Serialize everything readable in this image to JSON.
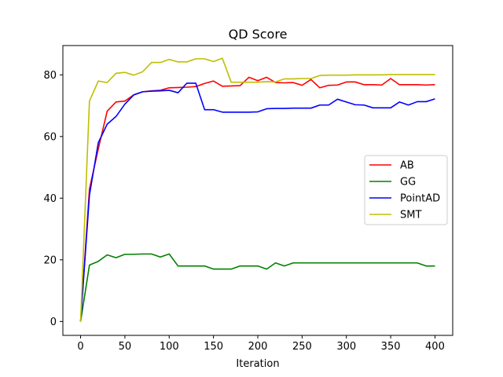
{
  "chart_data": {
    "type": "line",
    "title": "QD Score",
    "xlabel": "Iteration",
    "ylabel": "",
    "xlim": [
      -20,
      420
    ],
    "ylim": [
      -4.5,
      89.5
    ],
    "xticks": [
      0,
      50,
      100,
      150,
      200,
      250,
      300,
      350,
      400
    ],
    "yticks": [
      0,
      20,
      40,
      60,
      80
    ],
    "grid": false,
    "legend_position": "center-right",
    "x": [
      0,
      10,
      20,
      30,
      40,
      50,
      60,
      70,
      80,
      90,
      100,
      110,
      120,
      130,
      140,
      150,
      160,
      170,
      180,
      190,
      200,
      210,
      220,
      230,
      240,
      250,
      260,
      270,
      280,
      290,
      300,
      310,
      320,
      330,
      340,
      350,
      360,
      370,
      380,
      390,
      400
    ],
    "series": [
      {
        "name": "AB",
        "color": "#ff0000",
        "values": [
          0,
          43,
          56,
          68.2,
          71.2,
          71.5,
          73.5,
          74.5,
          74.8,
          75,
          75.8,
          75.9,
          76,
          76.2,
          77.2,
          78,
          76.3,
          76.4,
          76.5,
          79.2,
          78.1,
          79.2,
          77.5,
          77.4,
          77.5,
          76.6,
          78.5,
          75.8,
          76.6,
          76.7,
          77.7,
          77.7,
          76.8,
          76.8,
          76.7,
          78.8,
          76.8,
          76.8,
          76.8,
          76.7,
          76.8
        ]
      },
      {
        "name": "GG",
        "color": "#008000",
        "values": [
          0,
          18.3,
          19.5,
          21.6,
          20.7,
          21.8,
          21.8,
          21.9,
          21.9,
          20.9,
          21.9,
          18,
          18,
          18,
          18,
          17,
          17,
          17,
          18,
          18,
          18,
          17,
          19,
          18,
          19,
          19,
          19,
          19,
          19,
          19,
          19,
          19,
          19,
          19,
          19,
          19,
          19,
          19,
          19,
          18,
          18
        ]
      },
      {
        "name": "PointAD",
        "color": "#0000ff",
        "values": [
          0,
          41,
          58,
          64,
          66.5,
          70.5,
          73.5,
          74.5,
          74.7,
          74.8,
          75,
          74.2,
          77.3,
          77.3,
          68.7,
          68.7,
          67.9,
          67.9,
          67.9,
          67.9,
          68,
          69,
          69.1,
          69.1,
          69.2,
          69.2,
          69.2,
          70.2,
          70.2,
          72.1,
          71.2,
          70.3,
          70.2,
          69.3,
          69.3,
          69.3,
          71.2,
          70.2,
          71.3,
          71.3,
          72.2
        ]
      },
      {
        "name": "SMT",
        "color": "#bfbf00",
        "values": [
          0,
          71.5,
          78,
          77.5,
          80.5,
          80.8,
          79.9,
          81,
          84,
          84,
          85,
          84.2,
          84.2,
          85.2,
          85.2,
          84.3,
          85.4,
          77.6,
          77.6,
          77.6,
          77.6,
          77.8,
          77.7,
          78.7,
          78.7,
          78.8,
          78.8,
          79.8,
          79.9,
          79.9,
          79.9,
          80,
          80,
          80,
          80,
          80.1,
          80.1,
          80.1,
          80.1,
          80.1,
          80.1
        ]
      }
    ]
  }
}
